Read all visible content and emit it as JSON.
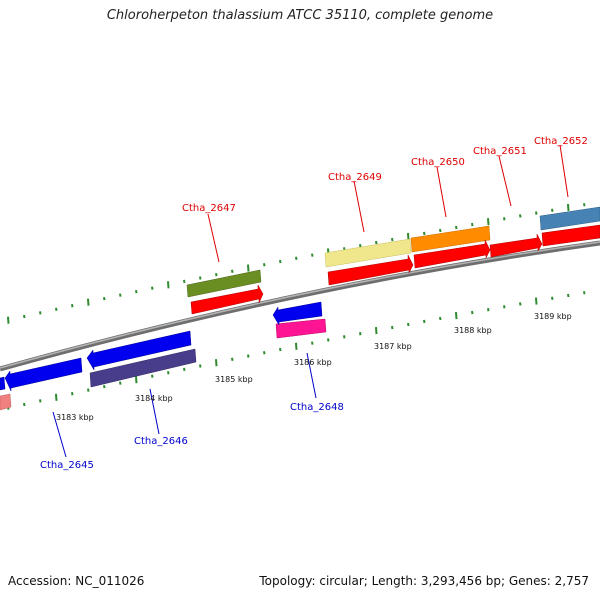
{
  "title": "Chloroherpeton thalassium ATCC 35110, complete genome",
  "footer": {
    "accession": "Accession: NC_011026",
    "topology": "Topology: circular; Length: 3,293,456 bp; Genes: 2,757"
  },
  "scale": [
    {
      "label": "3183 kbp"
    },
    {
      "label": "3184 kbp"
    },
    {
      "label": "3185 kbp"
    },
    {
      "label": "3186 kbp"
    },
    {
      "label": "3187 kbp"
    },
    {
      "label": "3188 kbp"
    },
    {
      "label": "3189 kbp"
    }
  ],
  "genes": [
    {
      "id": "Ctha_2645",
      "strand": "-",
      "color": "#0000ee",
      "label_color": "#0000cc"
    },
    {
      "id": "Ctha_2646",
      "strand": "-",
      "color": "#0000ee",
      "label_color": "#0000cc"
    },
    {
      "id": "Ctha_2647",
      "strand": "+",
      "color": "#ff0000",
      "label_color": "#dd0000"
    },
    {
      "id": "Ctha_2648",
      "strand": "-",
      "color": "#0000ee",
      "label_color": "#0000cc"
    },
    {
      "id": "Ctha_2649",
      "strand": "+",
      "color": "#ff0000",
      "label_color": "#dd0000"
    },
    {
      "id": "Ctha_2650",
      "strand": "+",
      "color": "#ff0000",
      "label_color": "#dd0000"
    },
    {
      "id": "Ctha_2651",
      "strand": "+",
      "color": "#ff0000",
      "label_color": "#dd0000"
    },
    {
      "id": "Ctha_2652",
      "strand": "+",
      "color": "#ff0000",
      "label_color": "#dd0000"
    }
  ],
  "legend_colors": {
    "backbone": "#8c8c8c",
    "tick_mark": "#2e8b2e",
    "cog_olive": "#6b8e23",
    "cog_khaki": "#f0e68c",
    "cog_orange": "#ff8c00",
    "cog_steelblue": "#4682b4",
    "cog_purple": "#483d8b",
    "cog_pink": "#ff1493",
    "cog_salmon": "#f08080"
  }
}
